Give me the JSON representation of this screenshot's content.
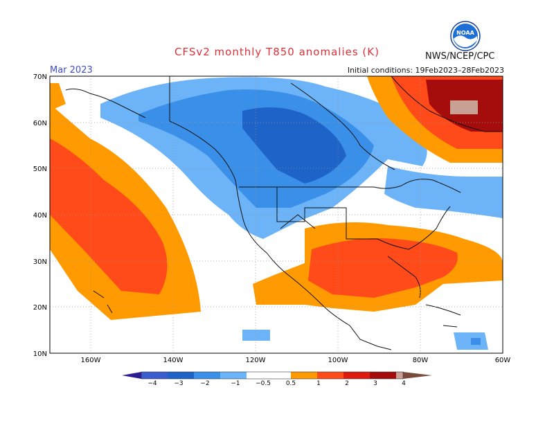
{
  "header": {
    "title": "CFSv2 monthly T850 anomalies (K)",
    "period": "Mar 2023",
    "initial_conditions": "Initial conditions: 19Feb2023–28Feb2023",
    "agency": "NWS/NCEP/CPC",
    "logo_text": "NOAA",
    "logo_icon": "noaa-logo"
  },
  "map": {
    "lat_labels": [
      "70N",
      "60N",
      "50N",
      "40N",
      "30N",
      "20N",
      "10N"
    ],
    "lon_labels": [
      "160W",
      "140W",
      "120W",
      "100W",
      "80W",
      "60W"
    ],
    "lat_values": [
      70,
      60,
      50,
      40,
      30,
      20,
      10
    ],
    "lon_values": [
      -160,
      -140,
      -120,
      -100,
      -80,
      -60
    ]
  },
  "colorbar": {
    "labels": [
      "−4",
      "−3",
      "−2",
      "−1",
      "−0.5",
      "0.5",
      "1",
      "2",
      "3",
      "4"
    ],
    "colors": [
      "#2d1b96",
      "#3b5dd1",
      "#1e63c8",
      "#3a8fe8",
      "#6cb4f7",
      "#ffffff",
      "#ff9a00",
      "#ff4a1a",
      "#dd1a10",
      "#a50c0c",
      "#c8a094",
      "#7a4a3a"
    ]
  }
}
